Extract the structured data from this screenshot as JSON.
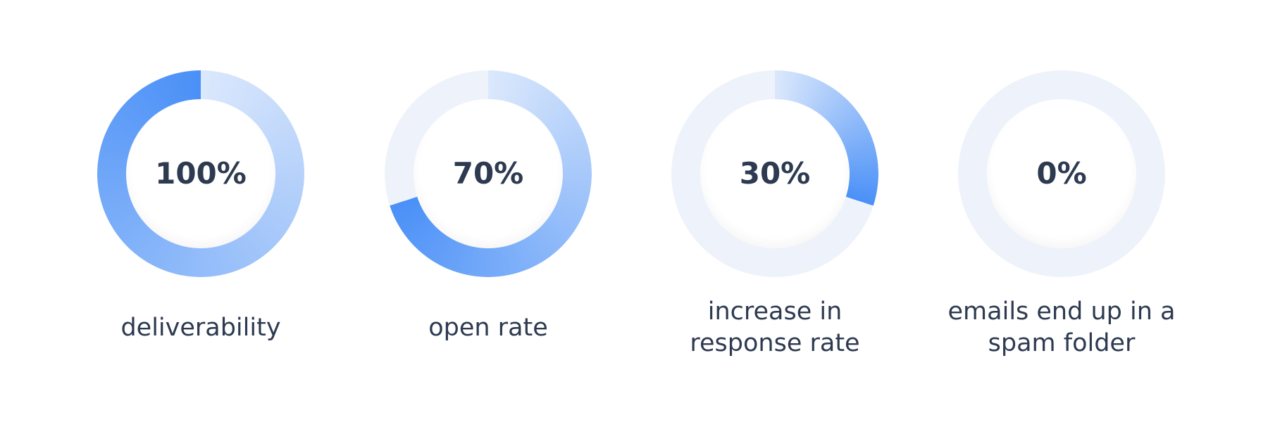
{
  "chart_data": {
    "type": "donut",
    "categories": [
      "deliverability",
      "open rate",
      "increase in response rate",
      "emails end up in a spam folder"
    ],
    "values": [
      100,
      70,
      30,
      0
    ],
    "value_labels": [
      "100%",
      "70%",
      "30%",
      "0%"
    ],
    "ylim": [
      0,
      100
    ]
  }
}
